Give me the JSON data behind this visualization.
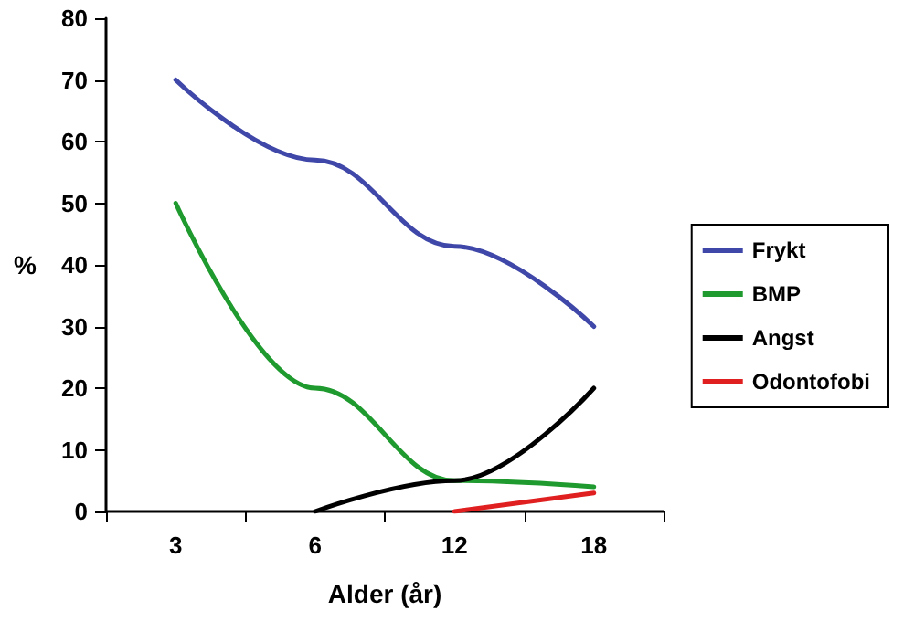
{
  "chart_data": {
    "type": "line",
    "xlabel": "Alder (år)",
    "ylabel": "%",
    "categories": [
      "3",
      "6",
      "12",
      "18"
    ],
    "series": [
      {
        "name": "Frykt",
        "color": "#3f48a8",
        "values": [
          70,
          57,
          43,
          30
        ]
      },
      {
        "name": "BMP",
        "color": "#1f9a2e",
        "values": [
          50,
          20,
          5,
          4
        ]
      },
      {
        "name": "Angst",
        "color": "#000000",
        "values": [
          null,
          0,
          5,
          20
        ]
      },
      {
        "name": "Odontofobi",
        "color": "#e02020",
        "values": [
          null,
          null,
          0,
          3
        ]
      }
    ],
    "ylim": [
      0,
      80
    ],
    "yticks": [
      0,
      10,
      20,
      30,
      40,
      50,
      60,
      70,
      80
    ],
    "grid": false,
    "legend": "right",
    "marker": "none",
    "line_style": "solid"
  }
}
